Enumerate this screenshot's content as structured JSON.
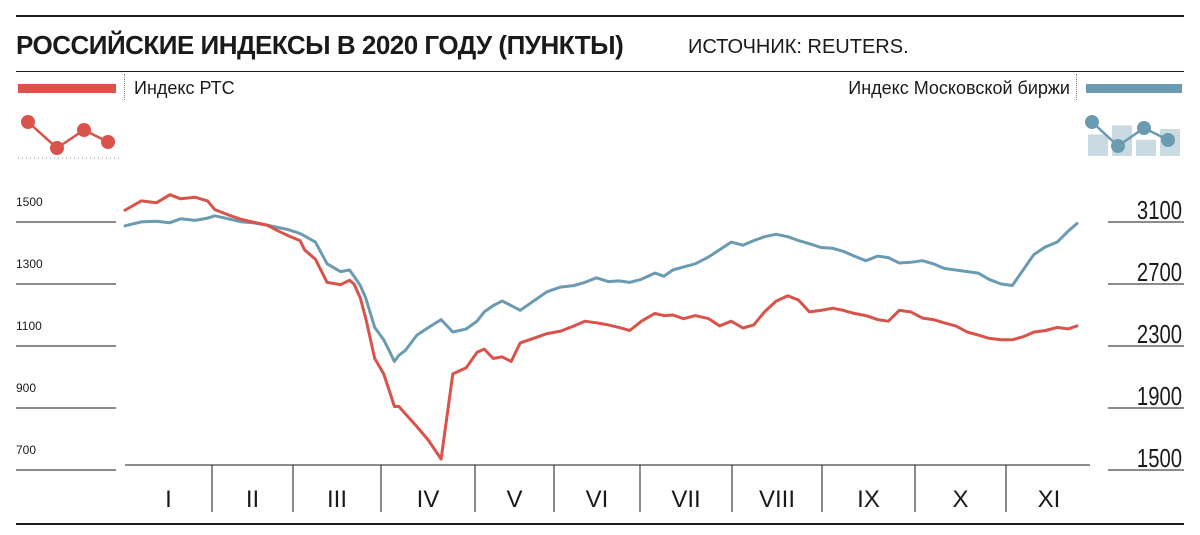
{
  "header": {
    "title": "РОССИЙСКИЕ ИНДЕКСЫ В 2020 ГОДУ (ПУНКТЫ)",
    "source": "ИСТОЧНИК: REUTERS."
  },
  "legend": {
    "left_label": "Индекс РТС",
    "right_label": "Индекс Московской биржи"
  },
  "colors": {
    "rts": "#d9534a",
    "moex": "#6b9bb0",
    "moex_bars": "#c9dae3"
  },
  "icons": {
    "left": "line-chart-icon",
    "right": "bar-line-chart-icon"
  },
  "chart_data": {
    "type": "line",
    "xlabels": [
      "I",
      "II",
      "III",
      "IV",
      "V",
      "VI",
      "VII",
      "VIII",
      "IX",
      "X",
      "XI"
    ],
    "left_axis": {
      "ticks": [
        "1500",
        "1300",
        "1100",
        "900",
        "700"
      ],
      "ylim": [
        700,
        1500
      ],
      "tick_values": [
        1500,
        1300,
        1100,
        900,
        700
      ]
    },
    "right_axis": {
      "ticks": [
        "3100",
        "2700",
        "2300",
        "1900",
        "1500"
      ],
      "ylim": [
        1500,
        3100
      ],
      "tick_values": [
        3100,
        2700,
        2300,
        1900,
        1500
      ]
    },
    "series": [
      {
        "name": "Индекс РТС",
        "axis": "left",
        "color": "#d9534a",
        "x": [
          0,
          0.18,
          0.35,
          0.5,
          0.62,
          0.78,
          0.92,
          1,
          1.15,
          1.3,
          1.42,
          1.58,
          1.7,
          1.82,
          1.95,
          2.0,
          2.12,
          2.25,
          2.4,
          2.5,
          2.55,
          2.62,
          2.68,
          2.78,
          2.88,
          2.95,
          3.0,
          3.05,
          3.12,
          3.25,
          3.38,
          3.52,
          3.65,
          3.8,
          3.92,
          4.0,
          4.1,
          4.2,
          4.3,
          4.4,
          4.55,
          4.7,
          4.85,
          5.0,
          5.12,
          5.25,
          5.38,
          5.5,
          5.62,
          5.75,
          5.9,
          6.0,
          6.1,
          6.22,
          6.35,
          6.5,
          6.62,
          6.75,
          6.88,
          7.0,
          7.12,
          7.25,
          7.38,
          7.5,
          7.62,
          7.75,
          7.88,
          8.0,
          8.12,
          8.25,
          8.38,
          8.5,
          8.62,
          8.75,
          8.88,
          9.0,
          9.12,
          9.25,
          9.38,
          9.5,
          9.62,
          9.75,
          9.88,
          10.0,
          10.12,
          10.25,
          10.38,
          10.5,
          10.6
        ],
        "values": [
          1538,
          1568,
          1562,
          1588,
          1575,
          1580,
          1568,
          1540,
          1523,
          1508,
          1500,
          1490,
          1472,
          1455,
          1440,
          1410,
          1380,
          1305,
          1298,
          1312,
          1300,
          1255,
          1190,
          1060,
          1010,
          950,
          905,
          905,
          882,
          840,
          795,
          735,
          1010,
          1030,
          1080,
          1090,
          1060,
          1065,
          1050,
          1110,
          1125,
          1140,
          1148,
          1165,
          1180,
          1175,
          1168,
          1160,
          1150,
          1180,
          1205,
          1198,
          1200,
          1188,
          1198,
          1188,
          1165,
          1180,
          1158,
          1168,
          1210,
          1245,
          1262,
          1248,
          1210,
          1215,
          1222,
          1215,
          1205,
          1198,
          1185,
          1180,
          1215,
          1210,
          1190,
          1185,
          1175,
          1165,
          1145,
          1135,
          1125,
          1120,
          1120,
          1130,
          1145,
          1150,
          1160,
          1155,
          1165
        ]
      },
      {
        "name": "Индекс Московской биржи",
        "axis": "right",
        "color": "#6b9bb0",
        "x": [
          0,
          0.18,
          0.35,
          0.5,
          0.62,
          0.78,
          0.92,
          1,
          1.15,
          1.3,
          1.42,
          1.58,
          1.7,
          1.82,
          1.95,
          2.0,
          2.12,
          2.25,
          2.4,
          2.5,
          2.55,
          2.62,
          2.68,
          2.78,
          2.88,
          2.95,
          3.0,
          3.05,
          3.12,
          3.25,
          3.38,
          3.52,
          3.65,
          3.8,
          3.92,
          4.0,
          4.1,
          4.2,
          4.3,
          4.4,
          4.55,
          4.7,
          4.85,
          5.0,
          5.12,
          5.25,
          5.38,
          5.5,
          5.62,
          5.75,
          5.9,
          6.0,
          6.1,
          6.22,
          6.35,
          6.5,
          6.62,
          6.75,
          6.88,
          7.0,
          7.12,
          7.25,
          7.38,
          7.5,
          7.62,
          7.75,
          7.88,
          8.0,
          8.12,
          8.25,
          8.38,
          8.5,
          8.62,
          8.75,
          8.88,
          9.0,
          9.12,
          9.25,
          9.38,
          9.5,
          9.62,
          9.75,
          9.88,
          10.0,
          10.12,
          10.25,
          10.38,
          10.5,
          10.6
        ],
        "values": [
          2985,
          3010,
          3015,
          3005,
          3030,
          3020,
          3035,
          3050,
          3030,
          3010,
          3005,
          2990,
          2975,
          2960,
          2935,
          2920,
          2880,
          2740,
          2690,
          2700,
          2660,
          2600,
          2520,
          2330,
          2250,
          2170,
          2110,
          2150,
          2180,
          2280,
          2330,
          2380,
          2300,
          2320,
          2370,
          2430,
          2470,
          2500,
          2470,
          2440,
          2500,
          2560,
          2590,
          2600,
          2620,
          2650,
          2625,
          2630,
          2620,
          2640,
          2680,
          2660,
          2700,
          2720,
          2740,
          2785,
          2830,
          2880,
          2860,
          2890,
          2915,
          2930,
          2915,
          2890,
          2870,
          2845,
          2840,
          2820,
          2790,
          2760,
          2790,
          2780,
          2745,
          2750,
          2760,
          2740,
          2710,
          2700,
          2690,
          2680,
          2640,
          2610,
          2600,
          2700,
          2800,
          2850,
          2880,
          2950,
          3000
        ]
      }
    ],
    "moex_icon_bars": [
      0.6,
      0.85,
      0.45,
      0.75
    ]
  }
}
